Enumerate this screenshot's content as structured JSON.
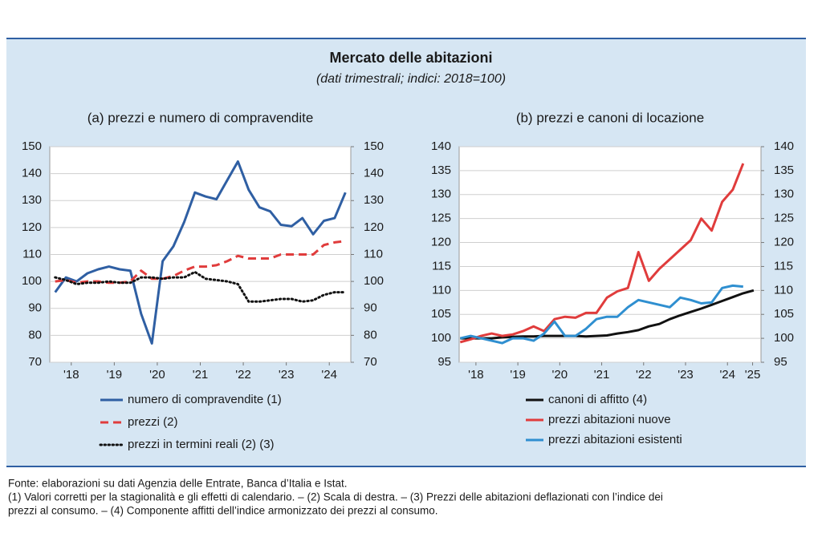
{
  "title": "Mercato delle abitazioni",
  "subtitle": "(dati trimestrali; indici: 2018=100)",
  "source": "Fonte: elaborazioni su dati Agenzia delle Entrate, Banca d’Italia e Istat.",
  "notes": [
    "(1) Valori corretti per la stagionalità e gli effetti di calendario. – (2) Scala di destra. – (3) Prezzi delle abitazioni deflazionati con l’indice dei",
    "prezzi al consumo. – (4) Componente affitti dell’indice armonizzato dei prezzi al consumo."
  ],
  "chart_data": [
    {
      "type": "line",
      "title": "(a) prezzi e numero di compravendite",
      "x": [
        2018.125,
        2018.375,
        2018.625,
        2018.875,
        2019.125,
        2019.375,
        2019.625,
        2019.875,
        2020.125,
        2020.375,
        2020.625,
        2020.875,
        2021.125,
        2021.375,
        2021.625,
        2021.875,
        2022.125,
        2022.375,
        2022.625,
        2022.875,
        2023.125,
        2023.375,
        2023.625,
        2023.875,
        2024.125,
        2024.375,
        2024.625,
        2024.875
      ],
      "xlim": [
        2018,
        2025
      ],
      "xticks": [
        {
          "value": 2018.5,
          "label": "'18"
        },
        {
          "value": 2019.5,
          "label": "'19"
        },
        {
          "value": 2020.5,
          "label": "'20"
        },
        {
          "value": 2021.5,
          "label": "'21"
        },
        {
          "value": 2022.5,
          "label": "'22"
        },
        {
          "value": 2023.5,
          "label": "'23"
        },
        {
          "value": 2024.5,
          "label": "'24"
        }
      ],
      "ylim": [
        70,
        150
      ],
      "yticks": [
        70,
        80,
        90,
        100,
        110,
        120,
        130,
        140,
        150
      ],
      "y2lim": [
        70,
        150
      ],
      "y2ticks": [
        70,
        80,
        90,
        100,
        110,
        120,
        130,
        140,
        150
      ],
      "grid": true,
      "series": [
        {
          "name": "numero di compravendite (1)",
          "color": "#2f5fa3",
          "line_style": "solid",
          "values": [
            96,
            101.5,
            100,
            103,
            104.5,
            105.5,
            104.5,
            104,
            88,
            77,
            107.5,
            113,
            122,
            133,
            131.5,
            130.5,
            137.5,
            144.5,
            134,
            127.5,
            126,
            121,
            120.5,
            123.5,
            117.5,
            122.5,
            123.5,
            133
          ]
        },
        {
          "name": "prezzi (2)",
          "color": "#e03c3c",
          "line_style": "dashed",
          "axis": "y2",
          "values": [
            100,
            100.5,
            99.5,
            100,
            100,
            99.5,
            99.5,
            100,
            104,
            101,
            101,
            102,
            104,
            105.5,
            105.5,
            106,
            107.5,
            109.5,
            108.5,
            108.5,
            108.5,
            110,
            110,
            110,
            110,
            113.5,
            114.5,
            115
          ]
        },
        {
          "name": "prezzi in termini reali (2) (3)",
          "color": "#111111",
          "line_style": "dotted",
          "axis": "y2",
          "values": [
            101.5,
            100.5,
            99,
            99.5,
            99.5,
            100,
            99.5,
            99.5,
            101.5,
            101.5,
            101,
            101.5,
            101.5,
            103.5,
            101,
            100.5,
            100,
            99,
            92.5,
            92.5,
            93,
            93.5,
            93.5,
            92.5,
            93,
            95,
            96,
            96
          ]
        }
      ]
    },
    {
      "type": "line",
      "title": "(b) prezzi e canoni di locazione",
      "x": [
        2018.125,
        2018.375,
        2018.625,
        2018.875,
        2019.125,
        2019.375,
        2019.625,
        2019.875,
        2020.125,
        2020.375,
        2020.625,
        2020.875,
        2021.125,
        2021.375,
        2021.625,
        2021.875,
        2022.125,
        2022.375,
        2022.625,
        2022.875,
        2023.125,
        2023.375,
        2023.625,
        2023.875,
        2024.125,
        2024.375,
        2024.625,
        2024.875,
        2025.125
      ],
      "xlim": [
        2018.1,
        2025.3
      ],
      "xticks": [
        {
          "value": 2018.5,
          "label": "'18"
        },
        {
          "value": 2019.5,
          "label": "'19"
        },
        {
          "value": 2020.5,
          "label": "'20"
        },
        {
          "value": 2021.5,
          "label": "'21"
        },
        {
          "value": 2022.5,
          "label": "'22"
        },
        {
          "value": 2023.5,
          "label": "'23"
        },
        {
          "value": 2024.5,
          "label": "'24"
        },
        {
          "value": 2025.1,
          "label": "'25"
        }
      ],
      "ylim": [
        95,
        140
      ],
      "yticks": [
        95,
        100,
        105,
        110,
        115,
        120,
        125,
        130,
        135,
        140
      ],
      "y2lim": [
        95,
        140
      ],
      "y2ticks": [
        95,
        100,
        105,
        110,
        115,
        120,
        125,
        130,
        135,
        140
      ],
      "grid": true,
      "series": [
        {
          "name": "canoni di affitto (4)",
          "color": "#111111",
          "line_style": "solid",
          "values": [
            100,
            100,
            100,
            100,
            100.2,
            100.3,
            100.4,
            100.4,
            100.5,
            100.5,
            100.5,
            100.5,
            100.4,
            100.5,
            100.6,
            101,
            101.3,
            101.7,
            102.5,
            103,
            104,
            104.8,
            105.5,
            106.2,
            107,
            107.8,
            108.6,
            109.4,
            110
          ]
        },
        {
          "name": "prezzi abitazioni nuove",
          "color": "#e03c3c",
          "line_style": "solid",
          "values": [
            99.2,
            99.8,
            100.5,
            101,
            100.5,
            100.8,
            101.5,
            102.5,
            101.5,
            104,
            104.5,
            104.3,
            105.3,
            105.3,
            108.5,
            109.8,
            110.5,
            118,
            112,
            114.5,
            116.5,
            118.5,
            120.5,
            125,
            122.5,
            128.5,
            131,
            136.5,
            null
          ]
        },
        {
          "name": "prezzi abitazioni esistenti",
          "color": "#2f8fd0",
          "line_style": "solid",
          "values": [
            100,
            100.5,
            100,
            99.5,
            99,
            100,
            100,
            99.5,
            101,
            103.5,
            100.5,
            100.5,
            102,
            104,
            104.5,
            104.5,
            106.5,
            108,
            107.5,
            107,
            106.5,
            108.5,
            108,
            107.3,
            107.5,
            110.5,
            111,
            110.8,
            null
          ]
        }
      ]
    }
  ]
}
